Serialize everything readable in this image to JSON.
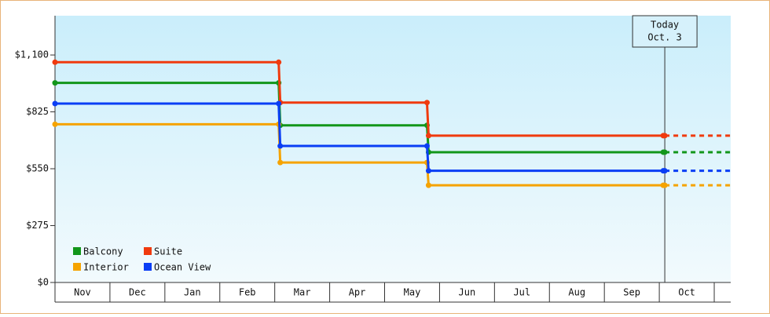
{
  "chart_data": {
    "type": "step-line",
    "categories": [
      "Nov",
      "Dec",
      "Jan",
      "Feb",
      "Mar",
      "Apr",
      "May",
      "Jun",
      "Jul",
      "Aug",
      "Sep",
      "Oct"
    ],
    "x": [
      0,
      4.1,
      6.8,
      11.1
    ],
    "xlim": [
      0,
      12.3
    ],
    "ylim": [
      0,
      1290
    ],
    "yticks": [
      {
        "value": 0,
        "label": "$0"
      },
      {
        "value": 275,
        "label": "$275"
      },
      {
        "value": 550,
        "label": "$550"
      },
      {
        "value": 825,
        "label": "$825"
      },
      {
        "value": 1100,
        "label": "$1,100"
      }
    ],
    "series": [
      {
        "name": "Balcony",
        "color": "#12961a",
        "values": [
          965,
          760,
          630,
          630
        ]
      },
      {
        "name": "Suite",
        "color": "#f03a0e",
        "values": [
          1065,
          870,
          710,
          710
        ]
      },
      {
        "name": "Interior",
        "color": "#f5a300",
        "values": [
          765,
          580,
          470,
          470
        ]
      },
      {
        "name": "Ocean View",
        "color": "#0a3ef5",
        "values": [
          865,
          660,
          540,
          540
        ]
      }
    ],
    "today": {
      "x": 11.1,
      "lines": [
        "Today",
        "Oct. 3"
      ]
    },
    "projection": true
  }
}
